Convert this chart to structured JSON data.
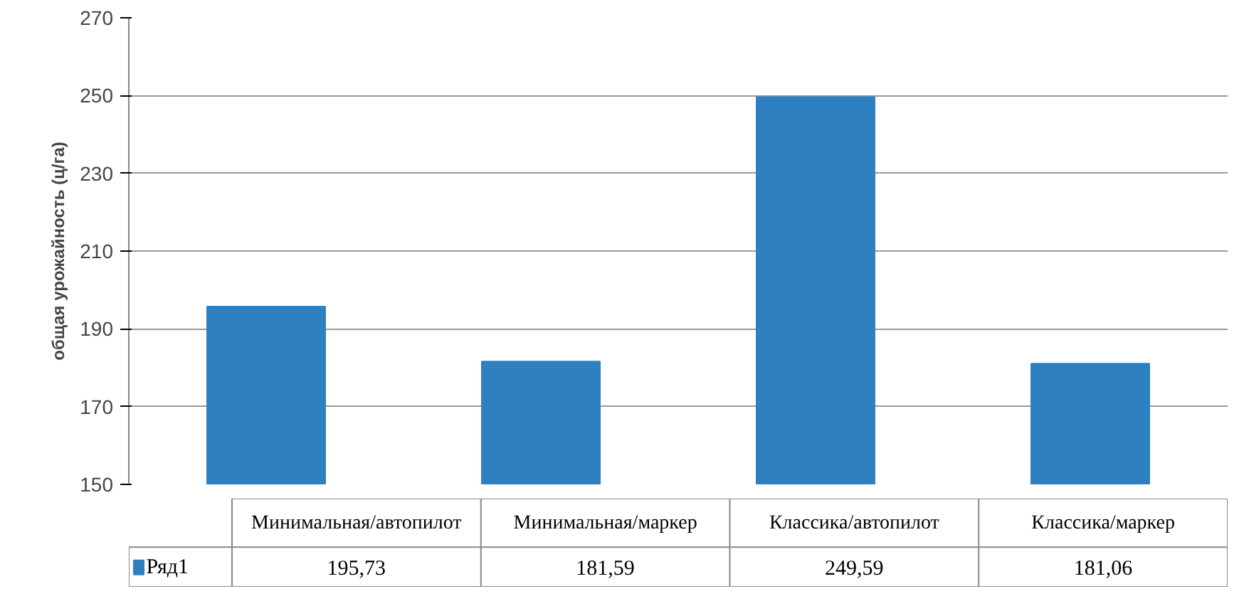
{
  "chart_data": {
    "type": "bar",
    "ylabel": "общая урожайность (ц/га)",
    "categories": [
      "Минимальная/автопилот",
      "Минимальная/маркер",
      "Классика/автопилот",
      "Классика/маркер"
    ],
    "series": [
      {
        "name": "Ряд1",
        "color": "#2e80c0",
        "values": [
          195.73,
          181.59,
          249.59,
          181.06
        ],
        "value_labels": [
          "195,73",
          "181,59",
          "249,59",
          "181,06"
        ]
      }
    ],
    "ylim": [
      150,
      270
    ],
    "yticks": [
      150,
      170,
      190,
      210,
      230,
      250,
      270
    ],
    "grid": "y",
    "legend": "bottom"
  }
}
